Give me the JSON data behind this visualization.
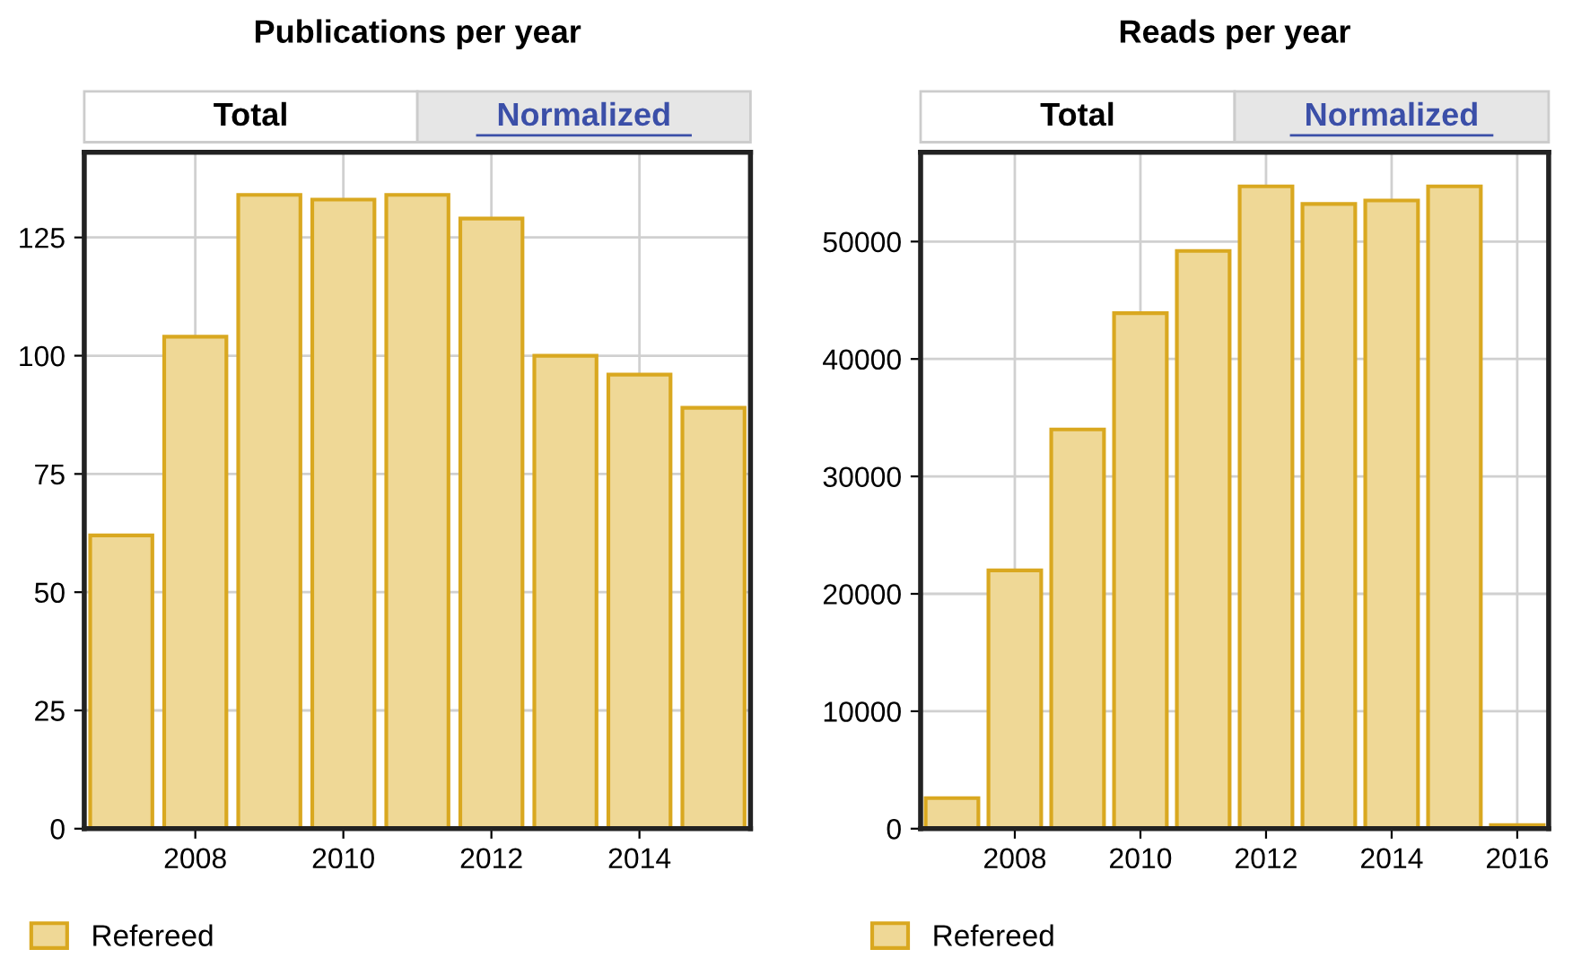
{
  "chart_data": [
    {
      "type": "bar",
      "title": "Publications per year",
      "annotations": [
        "Total",
        "Normalized"
      ],
      "x": [
        2007,
        2008,
        2009,
        2010,
        2011,
        2012,
        2013,
        2014,
        2015
      ],
      "series": [
        {
          "name": "Refereed",
          "color": "#efd896",
          "values": [
            62,
            104,
            134,
            133,
            134,
            129,
            100,
            96,
            89
          ]
        }
      ],
      "xlim": [
        2006.5,
        2015.5
      ],
      "xticks": [
        2008,
        2010,
        2012,
        2014
      ],
      "ylim": [
        0,
        143
      ],
      "yticks": [
        0,
        25,
        50,
        75,
        100,
        125
      ],
      "grid": true,
      "legend": "bottom left"
    },
    {
      "type": "bar",
      "title": "Reads per year",
      "annotations": [
        "Total",
        "Normalized"
      ],
      "x": [
        2007,
        2008,
        2009,
        2010,
        2011,
        2012,
        2013,
        2014,
        2015,
        2016
      ],
      "series": [
        {
          "name": "Refereed",
          "color": "#efd896",
          "values": [
            2600,
            22000,
            34000,
            43900,
            49200,
            54700,
            53200,
            53500,
            54700,
            300
          ]
        }
      ],
      "xlim": [
        2006.5,
        2016.5
      ],
      "xticks": [
        2008,
        2010,
        2012,
        2014,
        2016
      ],
      "ylim": [
        0,
        57600
      ],
      "yticks": [
        0,
        10000,
        20000,
        30000,
        40000,
        50000
      ],
      "grid": true,
      "legend": "bottom left"
    }
  ]
}
